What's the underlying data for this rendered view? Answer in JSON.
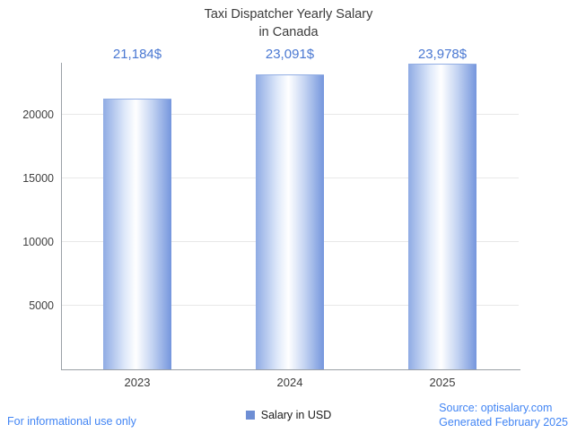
{
  "title": {
    "line1": "Taxi Dispatcher Yearly Salary",
    "line2": "in Canada"
  },
  "chart_data": {
    "type": "bar",
    "title": "Taxi Dispatcher Yearly Salary in Canada",
    "categories": [
      "2023",
      "2024",
      "2025"
    ],
    "values": [
      21184,
      23091,
      23978
    ],
    "value_labels": [
      "21,184$",
      "23,091$",
      "23,978$"
    ],
    "series_name": "Salary in USD",
    "xlabel": "",
    "ylabel": "",
    "ylim": [
      0,
      24100
    ],
    "yticks": [
      5000,
      10000,
      15000,
      20000
    ],
    "grid": true,
    "legend_position": "bottom"
  },
  "legend": {
    "label": "Salary in USD",
    "swatch_color": "#6e8ed4"
  },
  "footer": {
    "left": "For informational use only",
    "source": "Source: optisalary.com",
    "generated": "Generated February 2025"
  },
  "colors": {
    "value_label": "#4a78d2",
    "footer_text": "#4285f4",
    "bar_edge": "#7596dd",
    "axis": "#9aa0a6",
    "gridline": "#e8e8e8"
  }
}
